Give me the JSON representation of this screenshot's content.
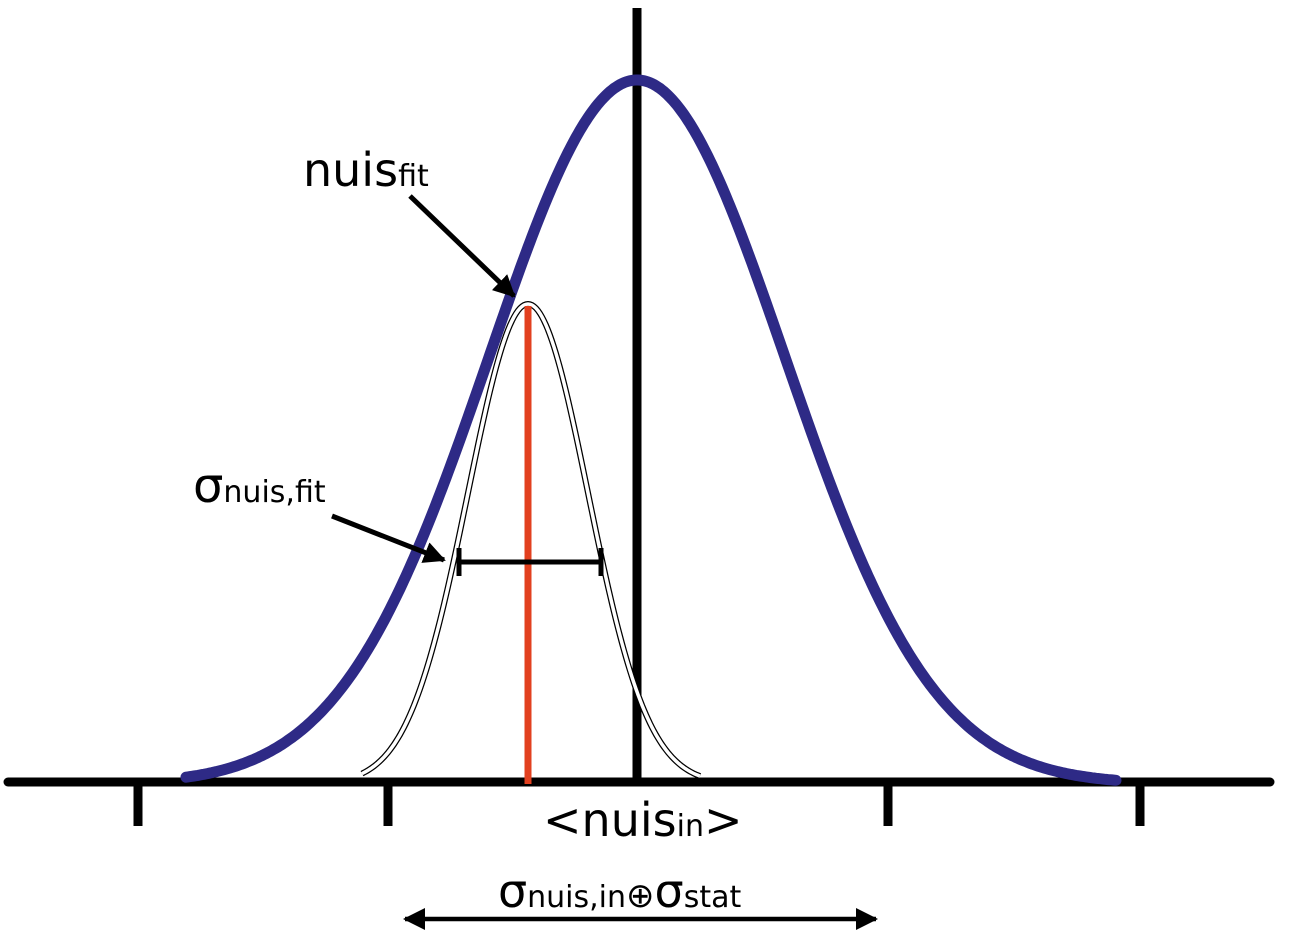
{
  "labels": {
    "fit_main": "nuis",
    "fit_sub": "fit",
    "sigma_fit_main": "σ",
    "sigma_fit_sub": "nuis,fit",
    "center_left": "<nuis",
    "center_sub": "in",
    "center_right": ">",
    "width_sigma1": "σ",
    "width_sub1": "nuis,in",
    "width_oplus": "⊕",
    "width_sigma2": "σ",
    "width_sub2": "stat"
  },
  "colors": {
    "prior_curve": "#2e2a86",
    "fit_line": "#e2401f",
    "axis": "#000000"
  }
}
